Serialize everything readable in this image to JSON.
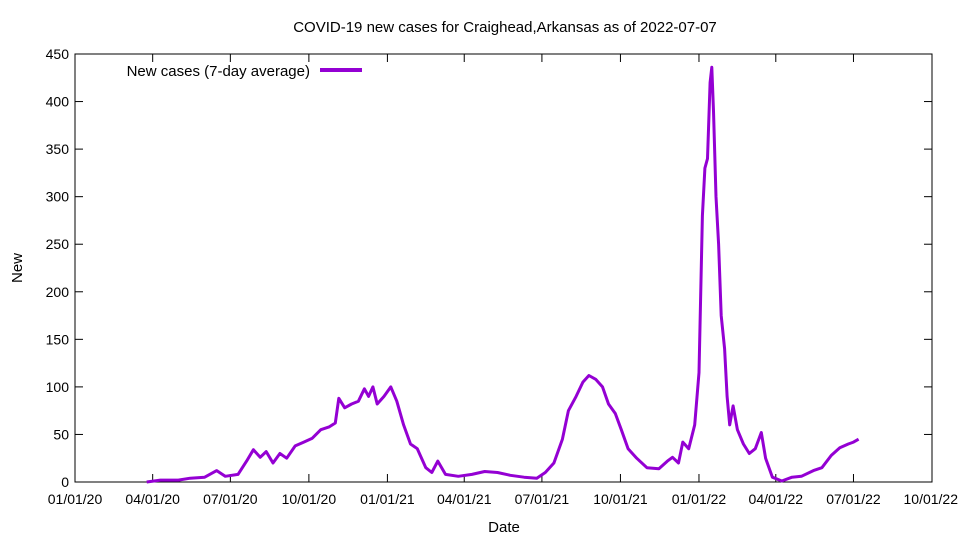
{
  "chart_data": {
    "type": "line",
    "title": "COVID-19 new cases for Craighead,Arkansas as of 2022-07-07",
    "xlabel": "Date",
    "ylabel": "New",
    "xlim": [
      "2020-01-01",
      "2022-10-01"
    ],
    "ylim": [
      0,
      450
    ],
    "x_tick_labels": [
      "01/01/20",
      "04/01/20",
      "07/01/20",
      "10/01/20",
      "01/01/21",
      "04/01/21",
      "07/01/21",
      "10/01/21",
      "01/01/22",
      "04/01/22",
      "07/01/22",
      "10/01/22"
    ],
    "x_tick_dates": [
      "2020-01-01",
      "2020-04-01",
      "2020-07-01",
      "2020-10-01",
      "2021-01-01",
      "2021-04-01",
      "2021-07-01",
      "2021-10-01",
      "2022-01-01",
      "2022-04-01",
      "2022-07-01",
      "2022-10-01"
    ],
    "y_ticks": [
      0,
      50,
      100,
      150,
      200,
      250,
      300,
      350,
      400,
      450
    ],
    "grid": false,
    "legend": "top-left",
    "series": [
      {
        "name": "New cases (7-day average)",
        "color": "#9400d3",
        "points": [
          [
            "2020-03-25",
            0
          ],
          [
            "2020-04-10",
            2
          ],
          [
            "2020-05-01",
            2
          ],
          [
            "2020-05-15",
            4
          ],
          [
            "2020-06-01",
            5
          ],
          [
            "2020-06-15",
            12
          ],
          [
            "2020-06-25",
            6
          ],
          [
            "2020-07-10",
            8
          ],
          [
            "2020-07-20",
            22
          ],
          [
            "2020-07-28",
            34
          ],
          [
            "2020-08-05",
            26
          ],
          [
            "2020-08-12",
            32
          ],
          [
            "2020-08-20",
            20
          ],
          [
            "2020-08-28",
            30
          ],
          [
            "2020-09-05",
            25
          ],
          [
            "2020-09-15",
            38
          ],
          [
            "2020-09-25",
            42
          ],
          [
            "2020-10-05",
            46
          ],
          [
            "2020-10-15",
            55
          ],
          [
            "2020-10-25",
            58
          ],
          [
            "2020-11-01",
            62
          ],
          [
            "2020-11-05",
            88
          ],
          [
            "2020-11-12",
            78
          ],
          [
            "2020-11-20",
            82
          ],
          [
            "2020-11-28",
            85
          ],
          [
            "2020-12-05",
            98
          ],
          [
            "2020-12-10",
            90
          ],
          [
            "2020-12-15",
            100
          ],
          [
            "2020-12-20",
            82
          ],
          [
            "2020-12-28",
            90
          ],
          [
            "2021-01-05",
            100
          ],
          [
            "2021-01-12",
            85
          ],
          [
            "2021-01-20",
            60
          ],
          [
            "2021-01-28",
            40
          ],
          [
            "2021-02-05",
            35
          ],
          [
            "2021-02-15",
            15
          ],
          [
            "2021-02-22",
            10
          ],
          [
            "2021-03-01",
            22
          ],
          [
            "2021-03-10",
            8
          ],
          [
            "2021-03-25",
            6
          ],
          [
            "2021-04-10",
            8
          ],
          [
            "2021-04-25",
            11
          ],
          [
            "2021-05-10",
            10
          ],
          [
            "2021-05-25",
            7
          ],
          [
            "2021-06-10",
            5
          ],
          [
            "2021-06-25",
            4
          ],
          [
            "2021-07-05",
            10
          ],
          [
            "2021-07-15",
            20
          ],
          [
            "2021-07-25",
            45
          ],
          [
            "2021-08-01",
            75
          ],
          [
            "2021-08-10",
            90
          ],
          [
            "2021-08-18",
            105
          ],
          [
            "2021-08-25",
            112
          ],
          [
            "2021-09-02",
            108
          ],
          [
            "2021-09-10",
            100
          ],
          [
            "2021-09-17",
            82
          ],
          [
            "2021-09-25",
            72
          ],
          [
            "2021-10-02",
            55
          ],
          [
            "2021-10-10",
            35
          ],
          [
            "2021-10-20",
            25
          ],
          [
            "2021-11-01",
            15
          ],
          [
            "2021-11-15",
            14
          ],
          [
            "2021-11-25",
            22
          ],
          [
            "2021-12-01",
            26
          ],
          [
            "2021-12-08",
            20
          ],
          [
            "2021-12-13",
            42
          ],
          [
            "2021-12-20",
            35
          ],
          [
            "2021-12-27",
            60
          ],
          [
            "2022-01-01",
            115
          ],
          [
            "2022-01-05",
            280
          ],
          [
            "2022-01-08",
            330
          ],
          [
            "2022-01-11",
            340
          ],
          [
            "2022-01-14",
            420
          ],
          [
            "2022-01-16",
            436
          ],
          [
            "2022-01-18",
            390
          ],
          [
            "2022-01-21",
            300
          ],
          [
            "2022-01-24",
            250
          ],
          [
            "2022-01-27",
            175
          ],
          [
            "2022-01-31",
            140
          ],
          [
            "2022-02-03",
            90
          ],
          [
            "2022-02-06",
            60
          ],
          [
            "2022-02-10",
            80
          ],
          [
            "2022-02-15",
            55
          ],
          [
            "2022-02-22",
            40
          ],
          [
            "2022-03-01",
            30
          ],
          [
            "2022-03-08",
            35
          ],
          [
            "2022-03-15",
            52
          ],
          [
            "2022-03-20",
            25
          ],
          [
            "2022-03-28",
            5
          ],
          [
            "2022-04-08",
            1
          ],
          [
            "2022-04-20",
            5
          ],
          [
            "2022-05-01",
            6
          ],
          [
            "2022-05-15",
            12
          ],
          [
            "2022-05-25",
            15
          ],
          [
            "2022-06-05",
            28
          ],
          [
            "2022-06-15",
            36
          ],
          [
            "2022-06-25",
            40
          ],
          [
            "2022-07-01",
            42
          ],
          [
            "2022-07-07",
            45
          ]
        ]
      }
    ]
  }
}
